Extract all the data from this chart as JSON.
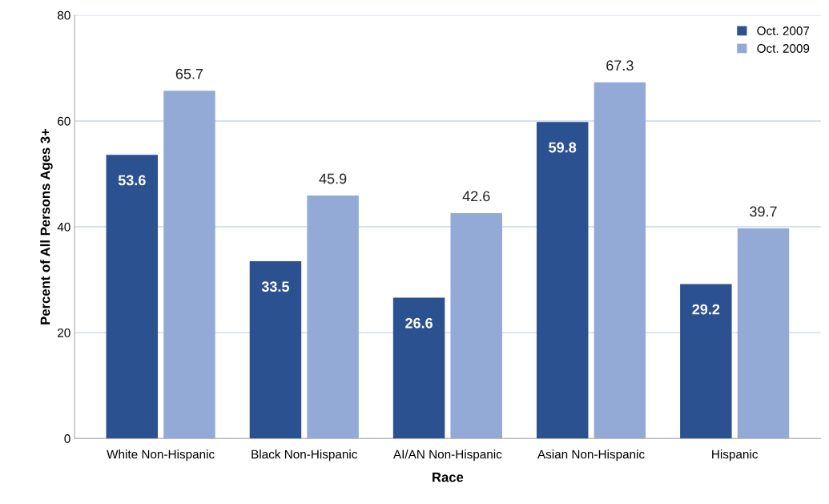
{
  "chart_data": {
    "type": "bar",
    "xlabel": "Race",
    "ylabel": "Percent of All Persons Ages 3+",
    "categories": [
      "White Non-Hispanic",
      "Black Non-Hispanic",
      "AI/AN Non-Hispanic",
      "Asian Non-Hispanic",
      "Hispanic"
    ],
    "series": [
      {
        "name": "Oct. 2007",
        "color": "#2b5190",
        "values": [
          53.6,
          33.5,
          26.6,
          59.8,
          29.2
        ]
      },
      {
        "name": "Oct. 2009",
        "color": "#93aad6",
        "values": [
          65.7,
          45.9,
          42.6,
          67.3,
          39.7
        ]
      }
    ],
    "ylim": [
      0,
      80
    ],
    "yticks": [
      0,
      20,
      40,
      60,
      80
    ],
    "grid": "y",
    "legend": "top right",
    "data_labels": true
  }
}
